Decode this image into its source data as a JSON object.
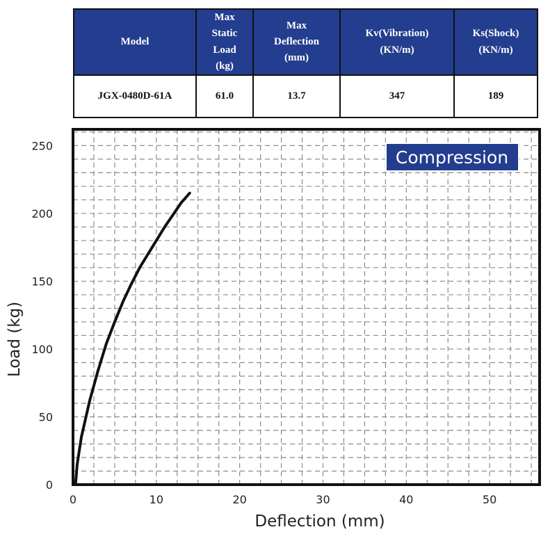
{
  "table": {
    "headers": [
      [
        "Model"
      ],
      [
        "Max",
        "Static",
        "Load",
        "(kg)"
      ],
      [
        "Max",
        "Deflection",
        "(mm)"
      ],
      [
        "Kv(Vibration)",
        "(KN/m)"
      ],
      [
        "Ks(Shock)",
        "(KN/m)"
      ]
    ],
    "row": [
      "JGX-0480D-61A",
      "61.0",
      "13.7",
      "347",
      "189"
    ]
  },
  "chart_data": {
    "type": "line",
    "title": "",
    "legend_label": "Compression",
    "legend_position": "top-right",
    "legend_color": "#233d8f",
    "line_color": "#111111",
    "xlabel": "Deflection (mm)",
    "ylabel": "Load (kg)",
    "xlim": [
      0,
      56
    ],
    "ylim": [
      0,
      262
    ],
    "xticks": [
      0,
      10,
      20,
      30,
      40,
      50
    ],
    "yticks": [
      0,
      50,
      100,
      150,
      200,
      250
    ],
    "grid": true,
    "series": [
      {
        "x": [
          0.3,
          0.5,
          1.0,
          2.0,
          3.0,
          4.0,
          5.0,
          6.0,
          7.0,
          8.0,
          9.0,
          10.0,
          11.0,
          12.0,
          13.0,
          14.0
        ],
        "y": [
          0,
          15,
          35,
          62,
          84,
          104,
          120,
          135,
          148,
          160,
          170,
          180,
          190,
          199,
          208,
          215
        ]
      }
    ]
  }
}
